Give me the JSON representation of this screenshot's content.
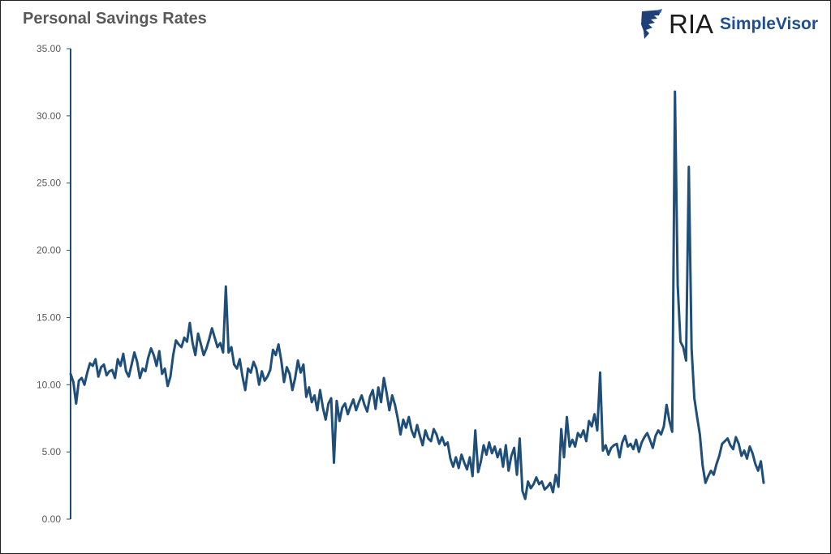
{
  "title": "Personal Savings Rates",
  "logo": {
    "brand": "RIA",
    "product": "SimpleVisor"
  },
  "colors": {
    "line": "#1f4e79",
    "axis": "#1f4e79",
    "title": "#595959",
    "brand_blue": "#1f4f8f"
  },
  "chart_data": {
    "type": "line",
    "title": "Personal Savings Rates",
    "xlabel": "",
    "ylabel": "",
    "ylim": [
      0,
      35
    ],
    "yticks": [
      "0.00",
      "5.00",
      "10.00",
      "15.00",
      "20.00",
      "25.00",
      "30.00",
      "35.00"
    ],
    "grid": false,
    "legend": "none",
    "x_description": "monthly observations (no x labels shown)",
    "series": [
      {
        "values": [
          10.8,
          10.2,
          8.6,
          10.3,
          10.5,
          10.0,
          10.9,
          11.6,
          11.4,
          11.9,
          10.6,
          11.3,
          11.5,
          10.7,
          11.0,
          11.1,
          10.5,
          11.9,
          11.4,
          12.3,
          11.0,
          10.6,
          11.5,
          12.4,
          11.7,
          10.5,
          11.2,
          11.0,
          12.0,
          12.7,
          12.2,
          11.4,
          12.5,
          10.8,
          11.2,
          9.9,
          10.6,
          12.2,
          13.3,
          13.0,
          12.8,
          13.5,
          13.2,
          14.6,
          13.1,
          12.2,
          13.8,
          13.0,
          12.2,
          12.7,
          13.4,
          14.2,
          13.5,
          12.8,
          13.1,
          12.4,
          17.3,
          12.4,
          12.8,
          11.5,
          11.2,
          11.9,
          10.6,
          9.6,
          11.2,
          10.9,
          11.7,
          11.2,
          10.0,
          11.0,
          10.3,
          10.6,
          11.1,
          12.6,
          12.2,
          13.0,
          11.8,
          10.2,
          11.3,
          10.8,
          9.6,
          10.5,
          11.8,
          10.9,
          11.5,
          9.1,
          9.8,
          8.7,
          9.2,
          8.1,
          9.6,
          8.3,
          7.4,
          8.6,
          9.0,
          4.2,
          8.8,
          7.3,
          8.3,
          8.6,
          7.8,
          8.4,
          8.9,
          8.1,
          8.7,
          9.2,
          8.5,
          8.0,
          9.1,
          9.6,
          8.2,
          9.8,
          8.7,
          10.5,
          9.4,
          8.1,
          9.2,
          8.5,
          7.5,
          6.3,
          7.4,
          6.8,
          7.6,
          6.6,
          6.1,
          7.0,
          6.2,
          5.5,
          6.6,
          6.0,
          5.8,
          6.7,
          6.3,
          5.6,
          6.1,
          5.5,
          5.7,
          4.5,
          3.9,
          4.6,
          3.8,
          4.8,
          4.2,
          3.7,
          4.6,
          3.2,
          6.6,
          3.5,
          4.3,
          5.5,
          4.8,
          5.7,
          4.9,
          5.4,
          4.6,
          5.2,
          3.9,
          5.5,
          3.6,
          4.7,
          5.3,
          3.3,
          6.0,
          2.1,
          1.5,
          2.8,
          2.3,
          2.6,
          3.1,
          2.6,
          2.8,
          2.2,
          2.4,
          2.7,
          2.0,
          3.3,
          2.4,
          6.7,
          4.6,
          7.6,
          5.4,
          5.9,
          5.4,
          6.4,
          6.1,
          6.6,
          5.8,
          7.3,
          6.9,
          7.8,
          6.6,
          10.9,
          5.1,
          5.5,
          4.8,
          5.3,
          5.5,
          5.6,
          4.6,
          5.7,
          6.2,
          5.4,
          5.6,
          5.2,
          5.9,
          5.0,
          5.7,
          6.1,
          6.4,
          5.9,
          5.3,
          6.2,
          6.6,
          6.3,
          6.9,
          8.5,
          7.3,
          6.5,
          31.8,
          17.4,
          13.2,
          12.8,
          11.8,
          26.2,
          12.7,
          9.0,
          7.6,
          6.3,
          4.0,
          2.7,
          3.2,
          3.6,
          3.3,
          4.1,
          4.7,
          5.6,
          5.8,
          6.0,
          5.5,
          5.2,
          6.1,
          5.6,
          4.7,
          5.1,
          4.5,
          5.4,
          4.9,
          4.1,
          3.6,
          4.3,
          2.7
        ]
      }
    ]
  }
}
